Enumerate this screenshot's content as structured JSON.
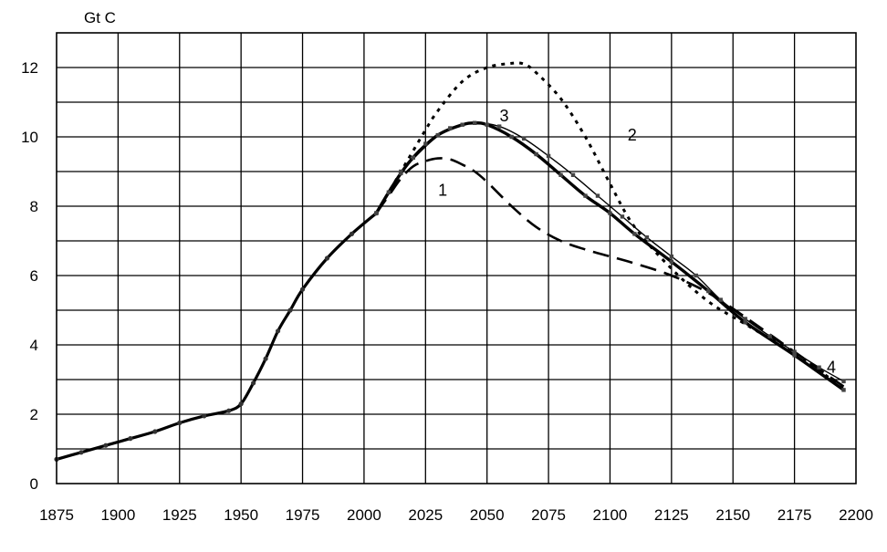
{
  "chart_data": {
    "type": "line",
    "title": "",
    "xlabel": "",
    "ylabel": "Gt C",
    "xlim": [
      1875,
      2200
    ],
    "ylim": [
      0,
      13
    ],
    "grid": true,
    "legend": "none",
    "x_ticks": [
      "1875",
      "1900",
      "1925",
      "1950",
      "1975",
      "2000",
      "2025",
      "2050",
      "2075",
      "2100",
      "2125",
      "2150",
      "2175",
      "2200"
    ],
    "y_ticks": [
      "0",
      "2",
      "4",
      "6",
      "8",
      "10",
      "12"
    ],
    "historical": {
      "x": [
        1875,
        1885,
        1895,
        1905,
        1915,
        1925,
        1935,
        1945,
        1950,
        1955,
        1960,
        1965,
        1970,
        1975,
        1985,
        1995,
        2005
      ],
      "y": [
        0.7,
        0.9,
        1.1,
        1.3,
        1.5,
        1.75,
        1.95,
        2.1,
        2.3,
        2.9,
        3.6,
        4.4,
        5.0,
        5.6,
        6.5,
        7.2,
        7.8
      ]
    },
    "series": [
      {
        "name": "1",
        "style": "dashed",
        "x": [
          2005,
          2010,
          2015,
          2020,
          2025,
          2030,
          2035,
          2040,
          2045,
          2050,
          2060,
          2070,
          2080,
          2090,
          2100,
          2110,
          2125,
          2140,
          2155,
          2175,
          2195
        ],
        "y": [
          7.8,
          8.3,
          8.8,
          9.15,
          9.3,
          9.38,
          9.35,
          9.2,
          9.0,
          8.7,
          8.0,
          7.4,
          7.0,
          6.75,
          6.55,
          6.35,
          6.0,
          5.5,
          4.8,
          3.8,
          2.8
        ]
      },
      {
        "name": "2",
        "style": "dotted",
        "x": [
          2005,
          2010,
          2015,
          2020,
          2025,
          2030,
          2040,
          2050,
          2060,
          2065,
          2070,
          2080,
          2090,
          2100,
          2110,
          2125,
          2140,
          2155,
          2175,
          2195
        ],
        "y": [
          7.8,
          8.4,
          9.0,
          9.6,
          10.2,
          10.75,
          11.6,
          12.0,
          12.12,
          12.1,
          11.85,
          11.1,
          10.0,
          8.65,
          7.4,
          6.2,
          5.25,
          4.6,
          3.75,
          2.75
        ]
      },
      {
        "name": "3",
        "style": "thick",
        "x": [
          2005,
          2010,
          2015,
          2020,
          2030,
          2040,
          2045,
          2050,
          2060,
          2070,
          2080,
          2090,
          2100,
          2110,
          2125,
          2140,
          2155,
          2175,
          2195
        ],
        "y": [
          7.8,
          8.4,
          8.95,
          9.4,
          10.05,
          10.35,
          10.4,
          10.35,
          10.0,
          9.5,
          8.9,
          8.3,
          7.8,
          7.2,
          6.4,
          5.55,
          4.65,
          3.7,
          2.7
        ]
      },
      {
        "name": "4",
        "style": "thin-markers",
        "x": [
          2005,
          2015,
          2025,
          2035,
          2045,
          2055,
          2065,
          2075,
          2085,
          2095,
          2105,
          2115,
          2125,
          2135,
          2145,
          2155,
          2165,
          2175,
          2185,
          2195
        ],
        "y": [
          7.8,
          9.0,
          9.8,
          10.25,
          10.4,
          10.3,
          9.95,
          9.45,
          8.9,
          8.3,
          7.7,
          7.1,
          6.55,
          6.0,
          5.3,
          4.75,
          4.25,
          3.8,
          3.35,
          2.95
        ]
      }
    ]
  }
}
